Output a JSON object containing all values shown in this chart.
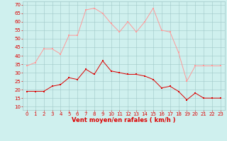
{
  "x": [
    0,
    1,
    2,
    3,
    4,
    5,
    6,
    7,
    8,
    9,
    10,
    11,
    12,
    13,
    14,
    15,
    16,
    17,
    18,
    19,
    20,
    21,
    22,
    23
  ],
  "wind_avg": [
    19,
    19,
    19,
    22,
    23,
    27,
    26,
    32,
    29,
    37,
    31,
    30,
    29,
    29,
    28,
    26,
    21,
    22,
    19,
    14,
    18,
    15,
    15,
    15
  ],
  "wind_gust": [
    34,
    36,
    44,
    44,
    41,
    52,
    52,
    67,
    68,
    65,
    59,
    54,
    60,
    54,
    60,
    68,
    55,
    54,
    42,
    25,
    34,
    34,
    34,
    34
  ],
  "bg_color": "#cff0ee",
  "grid_color": "#a0c8c8",
  "line_avg_color": "#dd0000",
  "line_gust_color": "#ff9999",
  "marker_size": 1.8,
  "xlabel": "Vent moyen/en rafales ( km/h )",
  "xlabel_color": "#dd0000",
  "xlabel_fontsize": 6,
  "tick_color": "#dd0000",
  "tick_fontsize": 5,
  "yticks": [
    10,
    15,
    20,
    25,
    30,
    35,
    40,
    45,
    50,
    55,
    60,
    65,
    70
  ],
  "ylim": [
    8,
    72
  ],
  "xlim": [
    -0.5,
    23.5
  ],
  "linewidth": 0.7
}
